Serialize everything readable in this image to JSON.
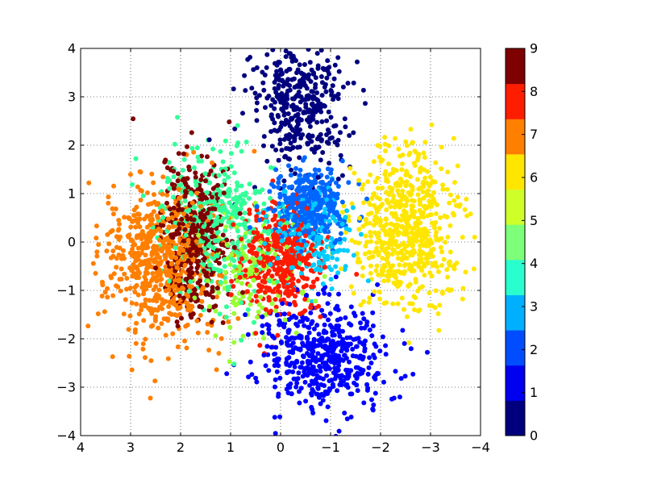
{
  "chart_data": {
    "type": "scatter",
    "title": "",
    "xlabel": "",
    "ylabel": "",
    "xlim": [
      4,
      -4
    ],
    "ylim": [
      -4,
      4
    ],
    "x_inverted": true,
    "grid": true,
    "grid_style": "dotted",
    "x_ticks": [
      4,
      3,
      2,
      1,
      0,
      -1,
      -2,
      -3,
      -4
    ],
    "x_tick_labels": [
      "4",
      "3",
      "2",
      "1",
      "0",
      "−1",
      "−2",
      "−3",
      "−4"
    ],
    "y_ticks": [
      4,
      3,
      2,
      1,
      0,
      -1,
      -2,
      -3,
      -4
    ],
    "y_tick_labels": [
      "4",
      "3",
      "2",
      "1",
      "0",
      "−1",
      "−2",
      "−3",
      "−4"
    ],
    "colormap": "jet",
    "colorbar": {
      "range": [
        0,
        9
      ],
      "ticks": [
        0,
        1,
        2,
        3,
        4,
        5,
        6,
        7,
        8,
        9
      ],
      "tick_labels": [
        "0",
        "1",
        "2",
        "3",
        "4",
        "5",
        "6",
        "7",
        "8",
        "9"
      ],
      "segment_colors": [
        "#00007f",
        "#0000f1",
        "#004dff",
        "#00b0ff",
        "#29ffce",
        "#7dff7a",
        "#ceff29",
        "#ffe600",
        "#ff7f00",
        "#ff1d00",
        "#7f0000"
      ]
    },
    "clusters": [
      {
        "label": 0,
        "color": "#00007f",
        "center": [
          -0.4,
          2.7
        ],
        "spread": [
          0.45,
          0.7
        ],
        "count": 380
      },
      {
        "label": 1,
        "color": "#0000ff",
        "center": [
          -0.9,
          -2.3
        ],
        "spread": [
          0.65,
          0.55
        ],
        "count": 480
      },
      {
        "label": 2,
        "color": "#0066ff",
        "center": [
          -0.6,
          0.75
        ],
        "spread": [
          0.35,
          0.35
        ],
        "count": 380
      },
      {
        "label": 3,
        "color": "#00ccff",
        "center": [
          -0.6,
          0.1
        ],
        "spread": [
          0.4,
          0.5
        ],
        "count": 200
      },
      {
        "label": 4,
        "color": "#33ff99",
        "center": [
          1.3,
          0.4
        ],
        "spread": [
          0.55,
          0.75
        ],
        "count": 380
      },
      {
        "label": 5,
        "color": "#99ff33",
        "center": [
          0.5,
          -0.6
        ],
        "spread": [
          0.5,
          0.6
        ],
        "count": 150
      },
      {
        "label": 6,
        "color": "#ffe600",
        "center": [
          -2.5,
          0.3
        ],
        "spread": [
          0.5,
          0.8
        ],
        "count": 620
      },
      {
        "label": 7,
        "color": "#ff7f00",
        "center": [
          2.4,
          -0.4
        ],
        "spread": [
          0.55,
          0.8
        ],
        "count": 640
      },
      {
        "label": 8,
        "color": "#ff1a00",
        "center": [
          0.0,
          -0.3
        ],
        "spread": [
          0.4,
          0.55
        ],
        "count": 420
      },
      {
        "label": 9,
        "color": "#7f0000",
        "center": [
          1.75,
          0.1
        ],
        "spread": [
          0.35,
          0.8
        ],
        "count": 420
      }
    ]
  }
}
